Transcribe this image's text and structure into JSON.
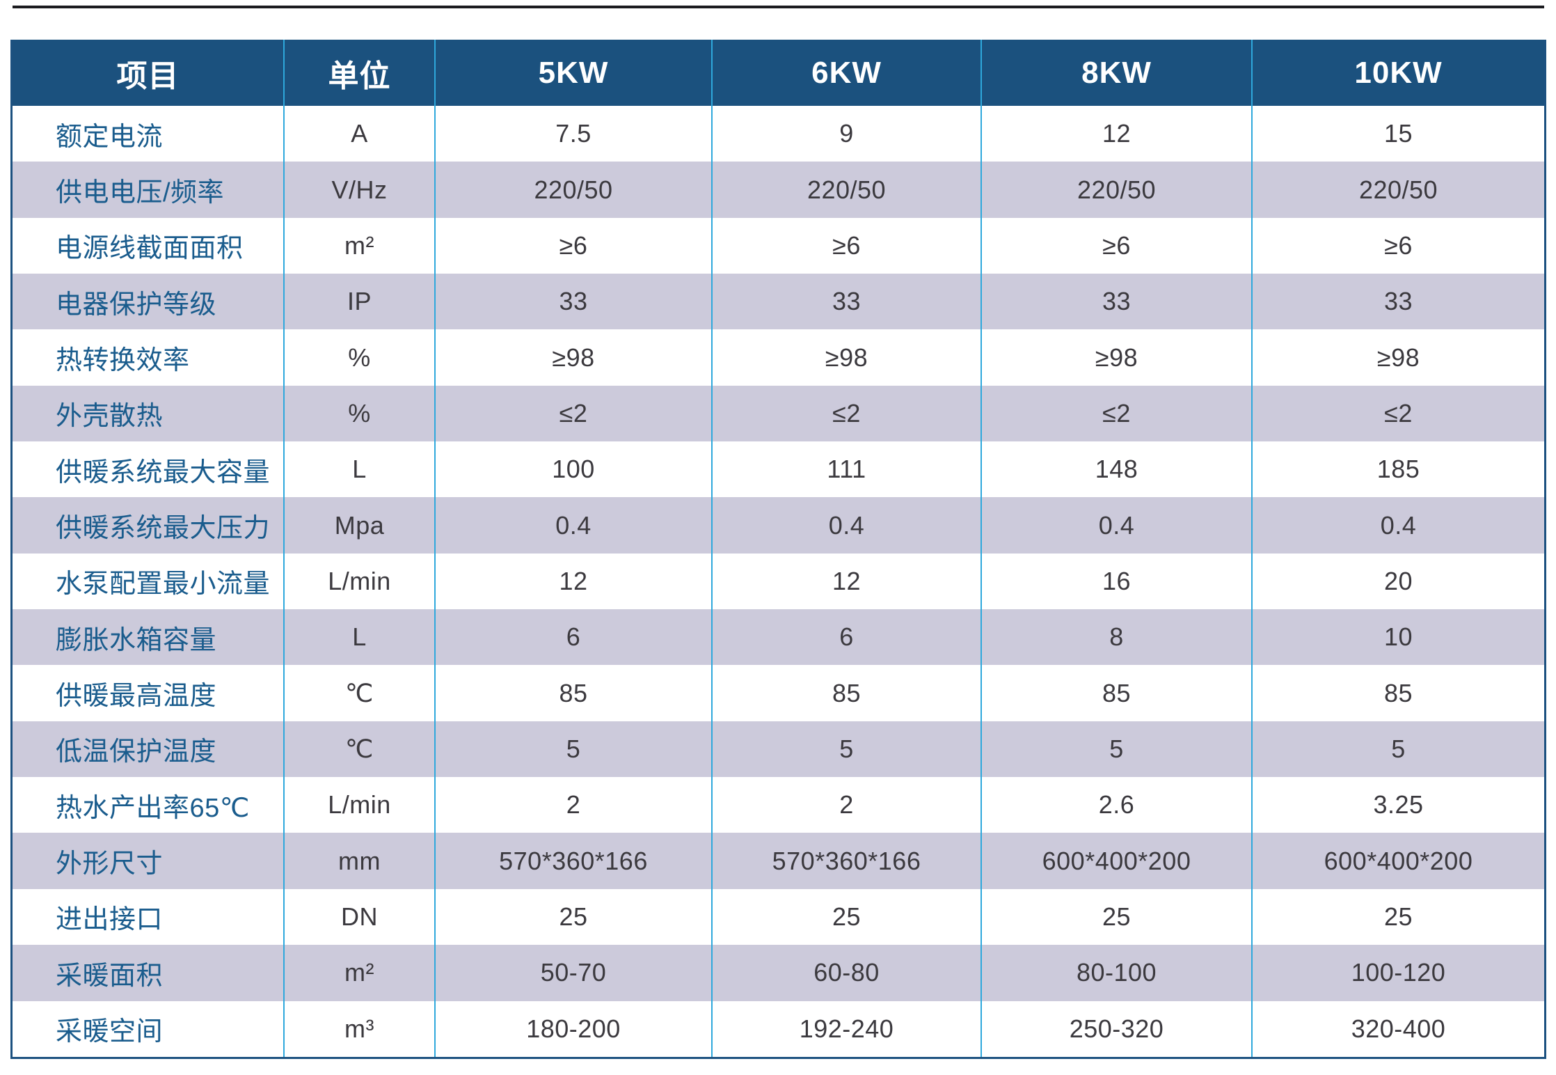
{
  "table": {
    "header": {
      "item": "项目",
      "unit": "单位",
      "models": [
        "5KW",
        "6KW",
        "8KW",
        "10KW"
      ]
    },
    "rows": [
      {
        "label": "额定电流",
        "unit": "A",
        "values": [
          "7.5",
          "9",
          "12",
          "15"
        ]
      },
      {
        "label": "供电电压/频率",
        "unit": "V/Hz",
        "values": [
          "220/50",
          "220/50",
          "220/50",
          "220/50"
        ]
      },
      {
        "label": "电源线截面面积",
        "unit": "m²",
        "values": [
          "≥6",
          "≥6",
          "≥6",
          "≥6"
        ]
      },
      {
        "label": "电器保护等级",
        "unit": "IP",
        "values": [
          "33",
          "33",
          "33",
          "33"
        ]
      },
      {
        "label": "热转换效率",
        "unit": "%",
        "values": [
          "≥98",
          "≥98",
          "≥98",
          "≥98"
        ]
      },
      {
        "label": "外壳散热",
        "unit": "%",
        "values": [
          "≤2",
          "≤2",
          "≤2",
          "≤2"
        ]
      },
      {
        "label": "供暖系统最大容量",
        "unit": "L",
        "values": [
          "100",
          "111",
          "148",
          "185"
        ]
      },
      {
        "label": "供暖系统最大压力",
        "unit": "Mpa",
        "values": [
          "0.4",
          "0.4",
          "0.4",
          "0.4"
        ]
      },
      {
        "label": "水泵配置最小流量",
        "unit": "L/min",
        "values": [
          "12",
          "12",
          "16",
          "20"
        ]
      },
      {
        "label": "膨胀水箱容量",
        "unit": "L",
        "values": [
          "6",
          "6",
          "8",
          "10"
        ]
      },
      {
        "label": "供暖最高温度",
        "unit": "℃",
        "values": [
          "85",
          "85",
          "85",
          "85"
        ]
      },
      {
        "label": "低温保护温度",
        "unit": "℃",
        "values": [
          "5",
          "5",
          "5",
          "5"
        ]
      },
      {
        "label": "热水产出率65℃",
        "unit": "L/min",
        "values": [
          "2",
          "2",
          "2.6",
          "3.25"
        ]
      },
      {
        "label": "外形尺寸",
        "unit": "mm",
        "values": [
          "570*360*166",
          "570*360*166",
          "600*400*200",
          "600*400*200"
        ]
      },
      {
        "label": "进出接口",
        "unit": "DN",
        "values": [
          "25",
          "25",
          "25",
          "25"
        ]
      },
      {
        "label": "采暖面积",
        "unit": "m²",
        "values": [
          "50-70",
          "60-80",
          "80-100",
          "100-120"
        ]
      },
      {
        "label": "采暖空间",
        "unit": "m³",
        "values": [
          "180-200",
          "192-240",
          "250-320",
          "320-400"
        ]
      }
    ],
    "colors": {
      "header_background": "#1b517e",
      "header_text": "#ffffff",
      "stripe_row_background": "#cccadb",
      "label_text": "#1a5c8d",
      "value_text": "#3b393e",
      "column_separator": "#2ea8dc",
      "outer_border": "#1c5180",
      "top_rule": "#1b1b1f"
    }
  }
}
